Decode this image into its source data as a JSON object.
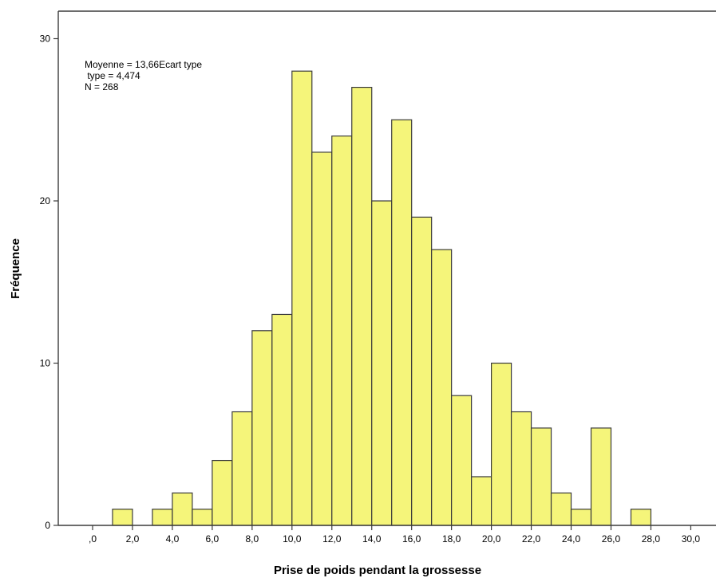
{
  "chart_data": {
    "type": "bar",
    "subtype": "histogram",
    "xlabel": "Prise de poids pendant la grossesse",
    "ylabel": "Fréquence",
    "stats": {
      "line1": "Moyenne = 13,66Ecart type",
      "line2": " type = 4,474",
      "line3": "N = 268"
    },
    "xlim": [
      -1,
      31
    ],
    "ylim": [
      0,
      30
    ],
    "x_ticks": [
      0,
      2,
      4,
      6,
      8,
      10,
      12,
      14,
      16,
      18,
      20,
      22,
      24,
      26,
      28,
      30
    ],
    "x_tick_labels": [
      ",0",
      "2,0",
      "4,0",
      "6,0",
      "8,0",
      "10,0",
      "12,0",
      "14,0",
      "16,0",
      "18,0",
      "20,0",
      "22,0",
      "24,0",
      "26,0",
      "28,0",
      "30,0"
    ],
    "y_ticks": [
      0,
      10,
      20,
      30
    ],
    "y_tick_labels": [
      "0",
      "10",
      "20",
      "30"
    ],
    "bin_width": 1,
    "bin_starts": [
      1,
      3,
      4,
      5,
      6,
      7,
      8,
      9,
      10,
      11,
      12,
      13,
      14,
      15,
      16,
      17,
      18,
      19,
      20,
      21,
      22,
      23,
      24,
      25,
      27
    ],
    "values": [
      1,
      1,
      2,
      1,
      4,
      7,
      12,
      13,
      28,
      23,
      24,
      27,
      20,
      25,
      19,
      17,
      8,
      3,
      10,
      7,
      6,
      2,
      1,
      6,
      1
    ],
    "bar_color": "#f5f57a",
    "bar_edge_color": "#3c3c3c",
    "grid": false,
    "legend": "none"
  }
}
